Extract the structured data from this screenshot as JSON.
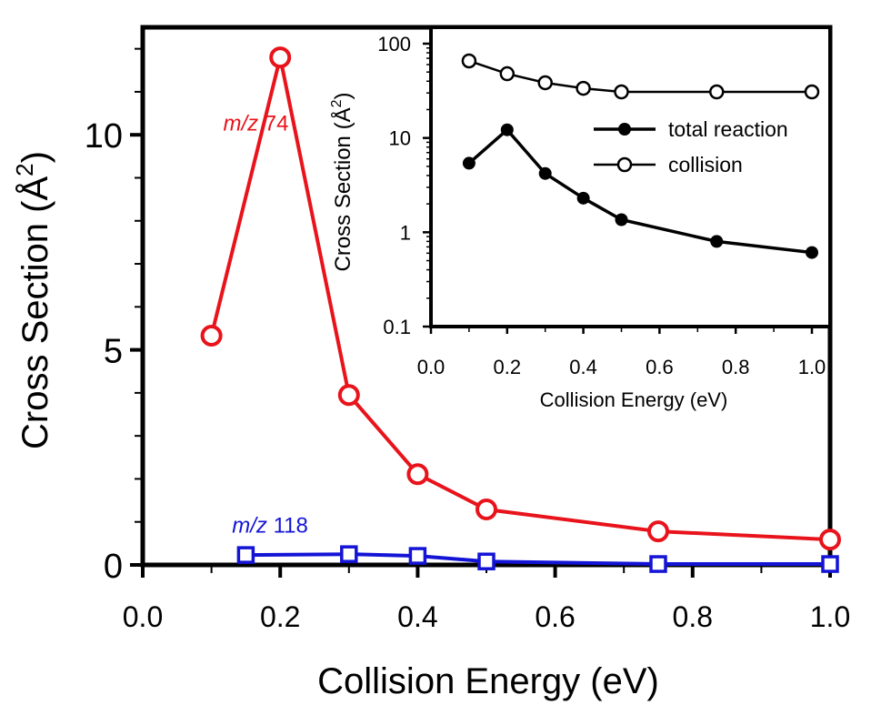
{
  "chart_data": [
    {
      "type": "line",
      "role": "main",
      "title": "",
      "xlabel": "Collision Energy (eV)",
      "ylabel": "Cross Section (Å²)",
      "ylabel_main": "Cross Section (Å",
      "ylabel_sup": "2",
      "ylabel_close": ")",
      "xlim": [
        0.0,
        1.0
      ],
      "ylim": [
        0,
        12.5
      ],
      "x_ticks": [
        0.0,
        0.2,
        0.4,
        0.6,
        0.8,
        1.0
      ],
      "x_tick_labels": [
        "0.0",
        "0.2",
        "0.4",
        "0.6",
        "0.8",
        "1.0"
      ],
      "x_minor_ticks": [
        0.1,
        0.3,
        0.5,
        0.7,
        0.9
      ],
      "y_ticks": [
        0,
        5,
        10
      ],
      "y_tick_labels": [
        "0",
        "5",
        "10"
      ],
      "y_minor_ticks": [
        1,
        2,
        3,
        4,
        6,
        7,
        8,
        9,
        11,
        12
      ],
      "grid": false,
      "series": [
        {
          "name": "m/z 74",
          "label_italic": "m/z",
          "label_rest": " 74",
          "color": "#e8131b",
          "marker": "open-circle",
          "x": [
            0.1,
            0.2,
            0.3,
            0.4,
            0.5,
            0.75,
            1.0
          ],
          "values": [
            5.33,
            11.8,
            3.95,
            2.11,
            1.29,
            0.78,
            0.59
          ],
          "label_pos": [
            0.08,
            10.1
          ]
        },
        {
          "name": "m/z 118",
          "label_italic": "m/z",
          "label_rest": " 118",
          "color": "#1414d6",
          "marker": "open-square",
          "x": [
            0.15,
            0.3,
            0.4,
            0.5,
            0.75,
            1.0
          ],
          "values": [
            0.23,
            0.25,
            0.21,
            0.08,
            0.02,
            0.02
          ],
          "label_pos": [
            0.13,
            0.75
          ]
        }
      ]
    },
    {
      "type": "line",
      "role": "inset",
      "title": "",
      "xlabel": "Collision Energy  (eV)",
      "ylabel_main": "Cross Section (Å",
      "ylabel_sup": "2",
      "ylabel_close": ")",
      "xlim": [
        0.0,
        1.05
      ],
      "ylim": [
        0.1,
        150
      ],
      "yscale": "log",
      "x_ticks": [
        0.0,
        0.2,
        0.4,
        0.6,
        0.8,
        1.0
      ],
      "x_tick_labels": [
        "0.0",
        "0.2",
        "0.4",
        "0.6",
        "0.8",
        "1.0"
      ],
      "x_minor_ticks": [
        0.1,
        0.3,
        0.5,
        0.7,
        0.9
      ],
      "y_ticks": [
        0.1,
        1,
        10,
        100
      ],
      "y_tick_labels": [
        "0.1",
        "1",
        "10",
        "100"
      ],
      "grid": false,
      "legend": "right-middle",
      "series": [
        {
          "name": "total reaction",
          "color": "#000000",
          "marker": "filled-circle",
          "x": [
            0.1,
            0.2,
            0.3,
            0.4,
            0.5,
            0.75,
            1.0
          ],
          "values": [
            5.4,
            12.2,
            4.2,
            2.3,
            1.36,
            0.8,
            0.61
          ]
        },
        {
          "name": "collision",
          "color": "#000000",
          "marker": "open-circle",
          "x": [
            0.1,
            0.2,
            0.3,
            0.4,
            0.5,
            0.75,
            1.0
          ],
          "values": [
            65.6,
            48,
            38.5,
            33.6,
            30.8,
            30.8,
            30.8
          ]
        }
      ]
    }
  ]
}
